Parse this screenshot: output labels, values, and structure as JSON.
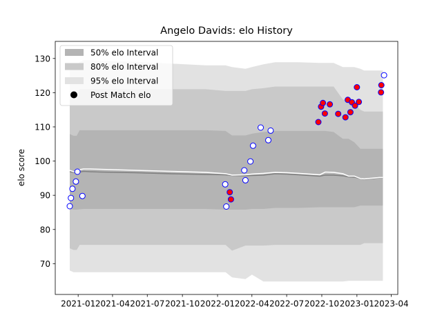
{
  "chart_data": {
    "type": "scatter",
    "title": "Angelo Davids: elo History",
    "xlabel": "",
    "ylabel": "elo score",
    "ylim": [
      61,
      135
    ],
    "xlim": [
      "2020-11-02",
      "2023-04-18"
    ],
    "x_ticks": [
      "2021-01",
      "2021-04",
      "2021-07",
      "2021-10",
      "2022-01",
      "2022-04",
      "2022-07",
      "2022-10",
      "2023-01",
      "2023-04"
    ],
    "y_ticks": [
      70,
      80,
      90,
      100,
      110,
      120,
      130
    ],
    "grid": false,
    "legend_position": "top-left",
    "legend": [
      {
        "label": "50% elo Interval",
        "kind": "band",
        "color": "#b4b4b4"
      },
      {
        "label": "80% elo Interval",
        "kind": "band",
        "color": "#c9c9c9"
      },
      {
        "label": "95% elo Interval",
        "kind": "band",
        "color": "#e2e2e2"
      },
      {
        "label": "Post Match elo",
        "kind": "marker",
        "color": "#000000"
      }
    ],
    "bands": {
      "dates": [
        "2020-12-10",
        "2020-12-20",
        "2020-12-28",
        "2021-01-05",
        "2021-01-15",
        "2021-02-01",
        "2021-03-01",
        "2021-06-01",
        "2021-09-01",
        "2021-12-01",
        "2022-01-22",
        "2022-02-08",
        "2022-03-15",
        "2022-04-01",
        "2022-05-01",
        "2022-06-01",
        "2022-07-01",
        "2022-08-01",
        "2022-09-26",
        "2022-10-10",
        "2022-11-01",
        "2022-11-25",
        "2022-12-10",
        "2022-12-25",
        "2023-01-10",
        "2023-01-20",
        "2023-03-01",
        "2023-03-10"
      ],
      "median": [
        96.9,
        96.7,
        96.7,
        96.8,
        97.0,
        96.9,
        96.8,
        96.6,
        96.3,
        96.1,
        96.0,
        95.8,
        95.7,
        95.8,
        95.9,
        96.3,
        96.2,
        96.0,
        95.6,
        95.9,
        95.9,
        95.7,
        95.4,
        95.3,
        94.9,
        94.7,
        95.1,
        95.1
      ],
      "white_line": [
        97.3,
        96.9,
        96.9,
        97.5,
        97.7,
        97.7,
        97.6,
        97.3,
        97.0,
        96.7,
        96.3,
        95.9,
        96.0,
        96.2,
        96.4,
        96.7,
        96.6,
        96.4,
        96.0,
        96.8,
        96.7,
        96.3,
        95.6,
        95.6,
        94.9,
        94.8,
        95.2,
        95.2
      ],
      "p50": [
        [
          86.0,
          107.9
        ],
        [
          85.8,
          107.4
        ],
        [
          85.8,
          107.4
        ],
        [
          85.9,
          109.0
        ],
        [
          86.0,
          109.0
        ],
        [
          86.0,
          109.0
        ],
        [
          86.0,
          109.0
        ],
        [
          86.0,
          109.0
        ],
        [
          86.0,
          109.0
        ],
        [
          86.0,
          109.0
        ],
        [
          85.8,
          108.8
        ],
        [
          85.8,
          107.5
        ],
        [
          85.8,
          107.5
        ],
        [
          86.0,
          108.0
        ],
        [
          86.0,
          108.5
        ],
        [
          86.3,
          108.8
        ],
        [
          86.3,
          108.8
        ],
        [
          86.3,
          108.8
        ],
        [
          86.5,
          108.8
        ],
        [
          86.5,
          108.8
        ],
        [
          86.5,
          108.5
        ],
        [
          86.5,
          106.5
        ],
        [
          86.5,
          106.5
        ],
        [
          86.5,
          105.5
        ],
        [
          87.0,
          103.6
        ],
        [
          87.0,
          103.6
        ],
        [
          87.0,
          103.6
        ],
        [
          87.0,
          103.6
        ]
      ],
      "p80": [
        [
          74.5,
          118.0
        ],
        [
          74.0,
          118.0
        ],
        [
          74.0,
          118.0
        ],
        [
          75.5,
          121.0
        ],
        [
          75.5,
          121.0
        ],
        [
          75.5,
          121.0
        ],
        [
          75.5,
          121.0
        ],
        [
          75.5,
          121.0
        ],
        [
          75.5,
          121.0
        ],
        [
          75.5,
          121.0
        ],
        [
          75.5,
          120.5
        ],
        [
          73.8,
          120.5
        ],
        [
          75.3,
          120.5
        ],
        [
          75.3,
          121.0
        ],
        [
          75.3,
          121.3
        ],
        [
          75.5,
          121.8
        ],
        [
          75.5,
          121.8
        ],
        [
          75.5,
          121.8
        ],
        [
          75.5,
          121.8
        ],
        [
          75.5,
          121.8
        ],
        [
          75.5,
          121.8
        ],
        [
          75.5,
          118.0
        ],
        [
          75.5,
          117.5
        ],
        [
          75.5,
          117.0
        ],
        [
          75.5,
          115.0
        ],
        [
          76.0,
          114.5
        ],
        [
          76.0,
          114.5
        ],
        [
          76.0,
          114.5
        ]
      ],
      "p95": [
        [
          68.0,
          128.0
        ],
        [
          67.5,
          128.0
        ],
        [
          67.5,
          128.0
        ],
        [
          67.5,
          129.0
        ],
        [
          67.5,
          129.5
        ],
        [
          67.5,
          129.5
        ],
        [
          67.5,
          129.3
        ],
        [
          67.5,
          129.0
        ],
        [
          67.5,
          128.5
        ],
        [
          67.5,
          128.0
        ],
        [
          67.5,
          128.0
        ],
        [
          66.0,
          127.5
        ],
        [
          65.5,
          127.0
        ],
        [
          66.8,
          127.5
        ],
        [
          64.8,
          128.3
        ],
        [
          64.8,
          128.9
        ],
        [
          64.8,
          128.9
        ],
        [
          64.8,
          128.9
        ],
        [
          64.8,
          128.7
        ],
        [
          64.8,
          128.7
        ],
        [
          64.8,
          128.7
        ],
        [
          64.8,
          127.5
        ],
        [
          65.0,
          127.5
        ],
        [
          65.0,
          127.5
        ],
        [
          65.0,
          127.0
        ],
        [
          65.0,
          126.5
        ],
        [
          65.0,
          126.5
        ],
        [
          65.0,
          126.5
        ]
      ]
    },
    "points": [
      {
        "date": "2020-12-10",
        "elo": 86.8,
        "fill": "#ffffff"
      },
      {
        "date": "2020-12-13",
        "elo": 89.2,
        "fill": "#ffffff"
      },
      {
        "date": "2020-12-17",
        "elo": 91.9,
        "fill": "#ffffff"
      },
      {
        "date": "2020-12-26",
        "elo": 94.0,
        "fill": "#ffffff"
      },
      {
        "date": "2020-12-30",
        "elo": 96.9,
        "fill": "#ffffff"
      },
      {
        "date": "2021-01-12",
        "elo": 89.8,
        "fill": "#ffffff"
      },
      {
        "date": "2022-01-21",
        "elo": 93.2,
        "fill": "#ffffff"
      },
      {
        "date": "2022-01-24",
        "elo": 86.7,
        "fill": "#ffffff"
      },
      {
        "date": "2022-02-02",
        "elo": 90.9,
        "fill": "#ff0000"
      },
      {
        "date": "2022-02-05",
        "elo": 88.8,
        "fill": "#ff0000"
      },
      {
        "date": "2022-03-12",
        "elo": 97.3,
        "fill": "#ffffff"
      },
      {
        "date": "2022-03-15",
        "elo": 94.4,
        "fill": "#ffffff"
      },
      {
        "date": "2022-03-28",
        "elo": 99.9,
        "fill": "#ffffff"
      },
      {
        "date": "2022-04-04",
        "elo": 104.5,
        "fill": "#ffffff"
      },
      {
        "date": "2022-04-24",
        "elo": 109.8,
        "fill": "#ffffff"
      },
      {
        "date": "2022-05-14",
        "elo": 106.1,
        "fill": "#ffffff"
      },
      {
        "date": "2022-05-20",
        "elo": 108.9,
        "fill": "#ffffff"
      },
      {
        "date": "2022-09-22",
        "elo": 111.4,
        "fill": "#ff0000"
      },
      {
        "date": "2022-09-29",
        "elo": 115.9,
        "fill": "#ff0000"
      },
      {
        "date": "2022-10-04",
        "elo": 117.0,
        "fill": "#ff0000"
      },
      {
        "date": "2022-10-09",
        "elo": 113.9,
        "fill": "#ff0000"
      },
      {
        "date": "2022-10-22",
        "elo": 116.6,
        "fill": "#ff0000"
      },
      {
        "date": "2022-11-13",
        "elo": 113.8,
        "fill": "#ff0000"
      },
      {
        "date": "2022-12-02",
        "elo": 112.8,
        "fill": "#ff0000"
      },
      {
        "date": "2022-12-08",
        "elo": 117.9,
        "fill": "#ff0000"
      },
      {
        "date": "2022-12-15",
        "elo": 114.3,
        "fill": "#ff0000"
      },
      {
        "date": "2022-12-19",
        "elo": 117.2,
        "fill": "#ff0000"
      },
      {
        "date": "2022-12-27",
        "elo": 116.2,
        "fill": "#ff0000"
      },
      {
        "date": "2023-01-01",
        "elo": 121.6,
        "fill": "#ff0000"
      },
      {
        "date": "2023-01-06",
        "elo": 117.3,
        "fill": "#ff0000"
      },
      {
        "date": "2023-03-05",
        "elo": 120.1,
        "fill": "#ff0000"
      },
      {
        "date": "2023-03-06",
        "elo": 122.2,
        "fill": "#ff0000"
      },
      {
        "date": "2023-03-13",
        "elo": 125.1,
        "fill": "#ffffff"
      }
    ],
    "colors": {
      "marker_edge": "#0000ff",
      "median_line": "#808080",
      "reference_line": "#ffffff",
      "band_50": "#b4b4b4",
      "band_80": "#c9c9c9",
      "band_95": "#e2e2e2"
    }
  }
}
